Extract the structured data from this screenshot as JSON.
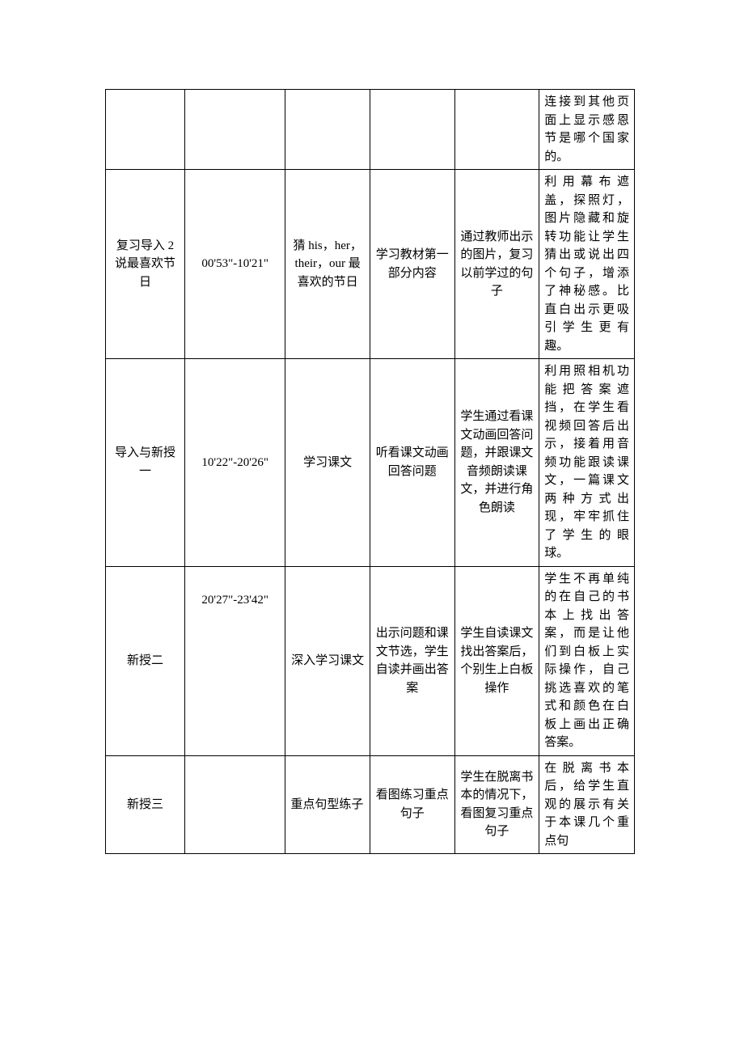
{
  "table": {
    "rows": [
      {
        "col1": "",
        "col2": "",
        "col3": "",
        "col4": "",
        "col5": "",
        "col6": "连接到其他页面上显示感恩节是哪个国家的。"
      },
      {
        "col1": "复习导入 2说最喜欢节日",
        "col2": "00'53\"-10'21\"",
        "col3": "猜 his，her，their，our 最喜欢的节日",
        "col4": "学习教材第一部分内容",
        "col5": "通过教师出示的图片，复习以前学过的句子",
        "col6": "利用幕布遮盖，探照灯，图片隐藏和旋转功能让学生猜出或说出四个句子，增添了神秘感。比直白出示更吸引学生更有趣。"
      },
      {
        "col1": "导入与新授一",
        "col2": "10'22\"-20'26\"",
        "col3": "学习课文",
        "col4": "听看课文动画回答问题",
        "col5": "学生通过看课文动画回答问题，并跟课文音频朗读课文，并进行角色朗读",
        "col6": "利用照相机功能把答案遮挡，在学生看视频回答后出示，接着用音频功能跟读课文，一篇课文两种方式出现，牢牢抓住了学生的眼球。"
      },
      {
        "col1": "新授二",
        "col2": "20'27\"-23'42\"",
        "col3": "深入学习课文",
        "col4": "出示问题和课文节选，学生自读并画出答案",
        "col5": "学生自读课文找出答案后，个别生上白板操作",
        "col6": "学生不再单纯的在自己的书本上找出答案，而是让他们到白板上实际操作，自己挑选喜欢的笔式和颜色在白板上画出正确答案。"
      },
      {
        "col1": "新授三",
        "col2": "",
        "col3": "重点句型练子",
        "col4": "看图练习重点句子",
        "col5": "学生在脱离书本的情况下，看图复习重点句子",
        "col6": "在脱离书本后，给学生直观的展示有关于本课几个重点句"
      }
    ]
  }
}
